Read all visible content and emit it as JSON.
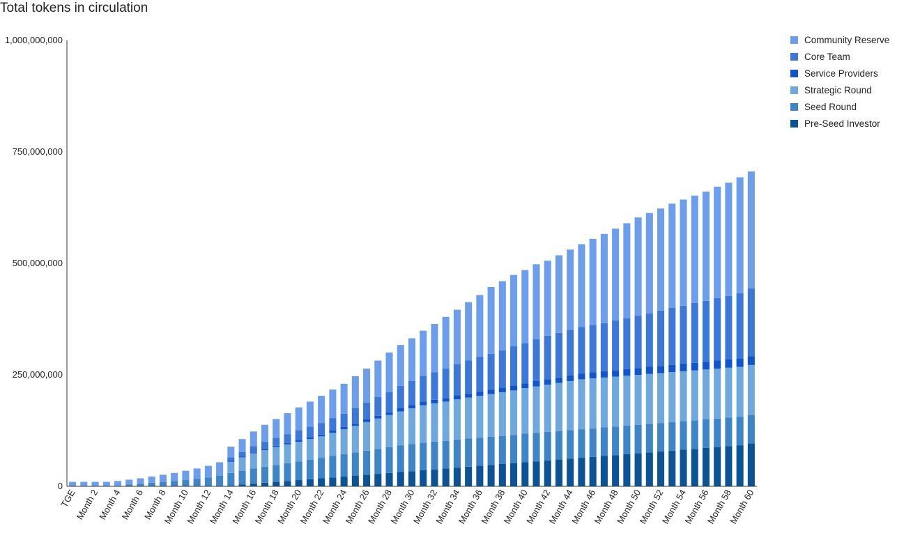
{
  "chart_data": {
    "type": "bar",
    "stacked": true,
    "title": "Total tokens in circulation",
    "xlabel": "",
    "ylabel": "",
    "ylim": [
      0,
      1000000000
    ],
    "yticks": [
      "0",
      "250,000,000",
      "500,000,000",
      "750,000,000",
      "1,000,000,000"
    ],
    "ytick_values": [
      0,
      250000000,
      500000000,
      750000000,
      1000000000
    ],
    "grid": false,
    "legend_position": "right",
    "categories": [
      "TGE",
      "Month 1",
      "Month 2",
      "Month 3",
      "Month 4",
      "Month 5",
      "Month 6",
      "Month 7",
      "Month 8",
      "Month 9",
      "Month 10",
      "Month 11",
      "Month 12",
      "Month 13",
      "Month 14",
      "Month 15",
      "Month 16",
      "Month 17",
      "Month 18",
      "Month 19",
      "Month 20",
      "Month 21",
      "Month 22",
      "Month 23",
      "Month 24",
      "Month 25",
      "Month 26",
      "Month 27",
      "Month 28",
      "Month 29",
      "Month 30",
      "Month 31",
      "Month 32",
      "Month 33",
      "Month 34",
      "Month 35",
      "Month 36",
      "Month 37",
      "Month 38",
      "Month 39",
      "Month 40",
      "Month 41",
      "Month 42",
      "Month 43",
      "Month 44",
      "Month 45",
      "Month 46",
      "Month 47",
      "Month 48",
      "Month 49",
      "Month 50",
      "Month 51",
      "Month 52",
      "Month 53",
      "Month 54",
      "Month 55",
      "Month 56",
      "Month 57",
      "Month 58",
      "Month 59",
      "Month 60"
    ],
    "visible_xtick_labels": [
      "TGE",
      "Month 2",
      "Month 4",
      "Month 6",
      "Month 8",
      "Month 10",
      "Month 12",
      "Month 14",
      "Month 16",
      "Month 18",
      "Month 20",
      "Month 22",
      "Month 24",
      "Month 26",
      "Month 28",
      "Month 30",
      "Month 32",
      "Month 34",
      "Month 36",
      "Month 38",
      "Month 40",
      "Month 42",
      "Month 44",
      "Month 46",
      "Month 48",
      "Month 50",
      "Month 52",
      "Month 54",
      "Month 56",
      "Month 58",
      "Month 60"
    ],
    "series": [
      {
        "name": "Pre-Seed Investor",
        "color": "#0b5394",
        "values": [
          0,
          0,
          0,
          0,
          0,
          0,
          0,
          0,
          0,
          0,
          0,
          0,
          0,
          0,
          2000000,
          4000000,
          6000000,
          8000000,
          10000000,
          12000000,
          14000000,
          16000000,
          18000000,
          20000000,
          22000000,
          24000000,
          26000000,
          28000000,
          30000000,
          32000000,
          34000000,
          36000000,
          38000000,
          40000000,
          42000000,
          44000000,
          46000000,
          48000000,
          50000000,
          52000000,
          54000000,
          56000000,
          58000000,
          60000000,
          62000000,
          64000000,
          66000000,
          68000000,
          70000000,
          72000000,
          74000000,
          76000000,
          78000000,
          80000000,
          82000000,
          84000000,
          86000000,
          88000000,
          90000000,
          92000000,
          96000000
        ]
      },
      {
        "name": "Seed Round",
        "color": "#3d85c6",
        "values": [
          0,
          0,
          0,
          0,
          2000000,
          4000000,
          6000000,
          8000000,
          10000000,
          12000000,
          14000000,
          17000000,
          20000000,
          24000000,
          28000000,
          31000000,
          34000000,
          36000000,
          38000000,
          40000000,
          42000000,
          44000000,
          46000000,
          48000000,
          50000000,
          52000000,
          54000000,
          56000000,
          58000000,
          60000000,
          61000000,
          62000000,
          62000000,
          62000000,
          63000000,
          63000000,
          63000000,
          63000000,
          63000000,
          63000000,
          64000000,
          64000000,
          64000000,
          64000000,
          64000000,
          64000000,
          64000000,
          64000000,
          64000000,
          64000000,
          64000000,
          64000000,
          64000000,
          64000000,
          64000000,
          64000000,
          64000000,
          64000000,
          64000000,
          64000000,
          64000000
        ]
      },
      {
        "name": "Strategic Round",
        "color": "#6fa8dc",
        "values": [
          0,
          0,
          0,
          0,
          0,
          0,
          0,
          0,
          0,
          0,
          0,
          0,
          0,
          0,
          25000000,
          30000000,
          34000000,
          37000000,
          40000000,
          42000000,
          44000000,
          46000000,
          48000000,
          52000000,
          56000000,
          60000000,
          64000000,
          68000000,
          72000000,
          76000000,
          80000000,
          84000000,
          86000000,
          88000000,
          90000000,
          92000000,
          94000000,
          96000000,
          98000000,
          100000000,
          102000000,
          104000000,
          106000000,
          108000000,
          110000000,
          112000000,
          112000000,
          112000000,
          112000000,
          112000000,
          112000000,
          112000000,
          112000000,
          112000000,
          112000000,
          112000000,
          112000000,
          112000000,
          112000000,
          112000000,
          112000000
        ]
      },
      {
        "name": "Service Providers",
        "color": "#1155cc",
        "values": [
          0,
          0,
          0,
          0,
          0,
          0,
          0,
          0,
          0,
          0,
          0,
          0,
          0,
          0,
          2000000,
          2000000,
          2000000,
          3000000,
          3000000,
          3000000,
          4000000,
          4000000,
          4000000,
          5000000,
          5000000,
          5000000,
          6000000,
          6000000,
          6000000,
          7000000,
          7000000,
          8000000,
          8000000,
          8000000,
          9000000,
          9000000,
          10000000,
          10000000,
          10000000,
          11000000,
          11000000,
          12000000,
          12000000,
          12000000,
          13000000,
          13000000,
          14000000,
          14000000,
          14000000,
          15000000,
          15000000,
          16000000,
          16000000,
          16000000,
          17000000,
          17000000,
          18000000,
          18000000,
          19000000,
          19000000,
          20000000
        ]
      },
      {
        "name": "Core Team",
        "color": "#3c78d8",
        "values": [
          0,
          0,
          0,
          0,
          0,
          0,
          0,
          0,
          0,
          0,
          0,
          0,
          0,
          0,
          8000000,
          10000000,
          14000000,
          16000000,
          18000000,
          20000000,
          22000000,
          24000000,
          26000000,
          28000000,
          30000000,
          34000000,
          38000000,
          42000000,
          46000000,
          50000000,
          54000000,
          58000000,
          62000000,
          66000000,
          70000000,
          74000000,
          78000000,
          80000000,
          84000000,
          88000000,
          90000000,
          94000000,
          98000000,
          100000000,
          102000000,
          104000000,
          106000000,
          108000000,
          112000000,
          114000000,
          118000000,
          120000000,
          124000000,
          128000000,
          130000000,
          134000000,
          136000000,
          140000000,
          142000000,
          146000000,
          152000000
        ]
      },
      {
        "name": "Community Reserve",
        "color": "#6d9eeb",
        "values": [
          10000000,
          10000000,
          10000000,
          10000000,
          10000000,
          11000000,
          12000000,
          14000000,
          16000000,
          18000000,
          21000000,
          23000000,
          26000000,
          30000000,
          24000000,
          29000000,
          33000000,
          38000000,
          42000000,
          47000000,
          51000000,
          56000000,
          61000000,
          64000000,
          67000000,
          72000000,
          76000000,
          82000000,
          88000000,
          92000000,
          96000000,
          101000000,
          108000000,
          116000000,
          122000000,
          131000000,
          138000000,
          150000000,
          155000000,
          160000000,
          164000000,
          168000000,
          168000000,
          174000000,
          180000000,
          186000000,
          193000000,
          200000000,
          206000000,
          213000000,
          220000000,
          225000000,
          229000000,
          234000000,
          238000000,
          241000000,
          245000000,
          250000000,
          254000000,
          260000000,
          262000000
        ]
      }
    ]
  }
}
